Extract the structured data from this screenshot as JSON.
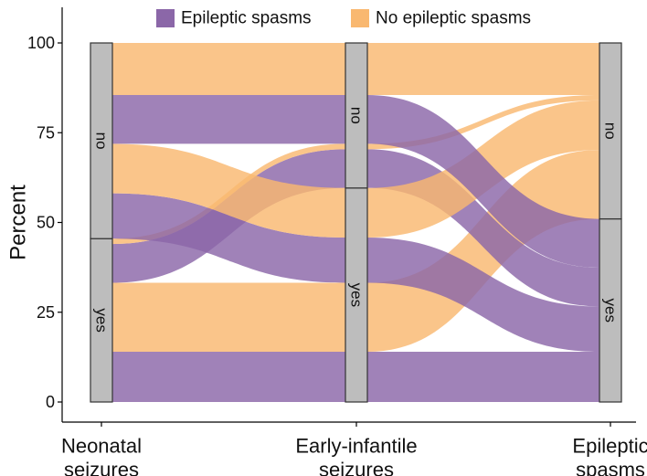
{
  "chart_data": {
    "type": "alluvial",
    "ylabel": "Percent",
    "ylim": [
      0,
      100
    ],
    "yticks": [
      0,
      25,
      50,
      75,
      100
    ],
    "legend_position": "top",
    "axes": [
      {
        "key": "ns",
        "label": "Neonatal\nseizures"
      },
      {
        "key": "eis",
        "label": "Early-infantile\nseizures"
      },
      {
        "key": "es",
        "label": "Epileptic\nspasms"
      }
    ],
    "strata": {
      "ns": [
        {
          "label": "yes",
          "bottom": 0,
          "top": 45.5
        },
        {
          "label": "no",
          "bottom": 45.5,
          "top": 100
        }
      ],
      "eis": [
        {
          "label": "yes",
          "bottom": 0,
          "top": 59.6
        },
        {
          "label": "no",
          "bottom": 59.6,
          "top": 100
        }
      ],
      "es": [
        {
          "label": "yes",
          "bottom": 0,
          "top": 51.0
        },
        {
          "label": "no",
          "bottom": 51.0,
          "top": 100
        }
      ]
    },
    "series": [
      {
        "name": "Epileptic spasms",
        "color": "#8B67A8"
      },
      {
        "name": "No epileptic spasms",
        "color": "#F9B870"
      }
    ],
    "flows": [
      {
        "fill": "Epileptic spasms",
        "ns": "yes",
        "eis": "yes",
        "es": "yes",
        "value": 14.0
      },
      {
        "fill": "No epileptic spasms",
        "ns": "yes",
        "eis": "yes",
        "es": "no",
        "value": 19.2
      },
      {
        "fill": "Epileptic spasms",
        "ns": "yes",
        "eis": "no",
        "es": "yes",
        "value": 10.8
      },
      {
        "fill": "No epileptic spasms",
        "ns": "yes",
        "eis": "no",
        "es": "no",
        "value": 1.5
      },
      {
        "fill": "Epileptic spasms",
        "ns": "no",
        "eis": "yes",
        "es": "yes",
        "value": 12.6
      },
      {
        "fill": "No epileptic spasms",
        "ns": "no",
        "eis": "yes",
        "es": "no",
        "value": 13.8
      },
      {
        "fill": "Epileptic spasms",
        "ns": "no",
        "eis": "no",
        "es": "yes",
        "value": 13.6
      },
      {
        "fill": "No epileptic spasms",
        "ns": "no",
        "eis": "no",
        "es": "no",
        "value": 14.5
      }
    ]
  }
}
